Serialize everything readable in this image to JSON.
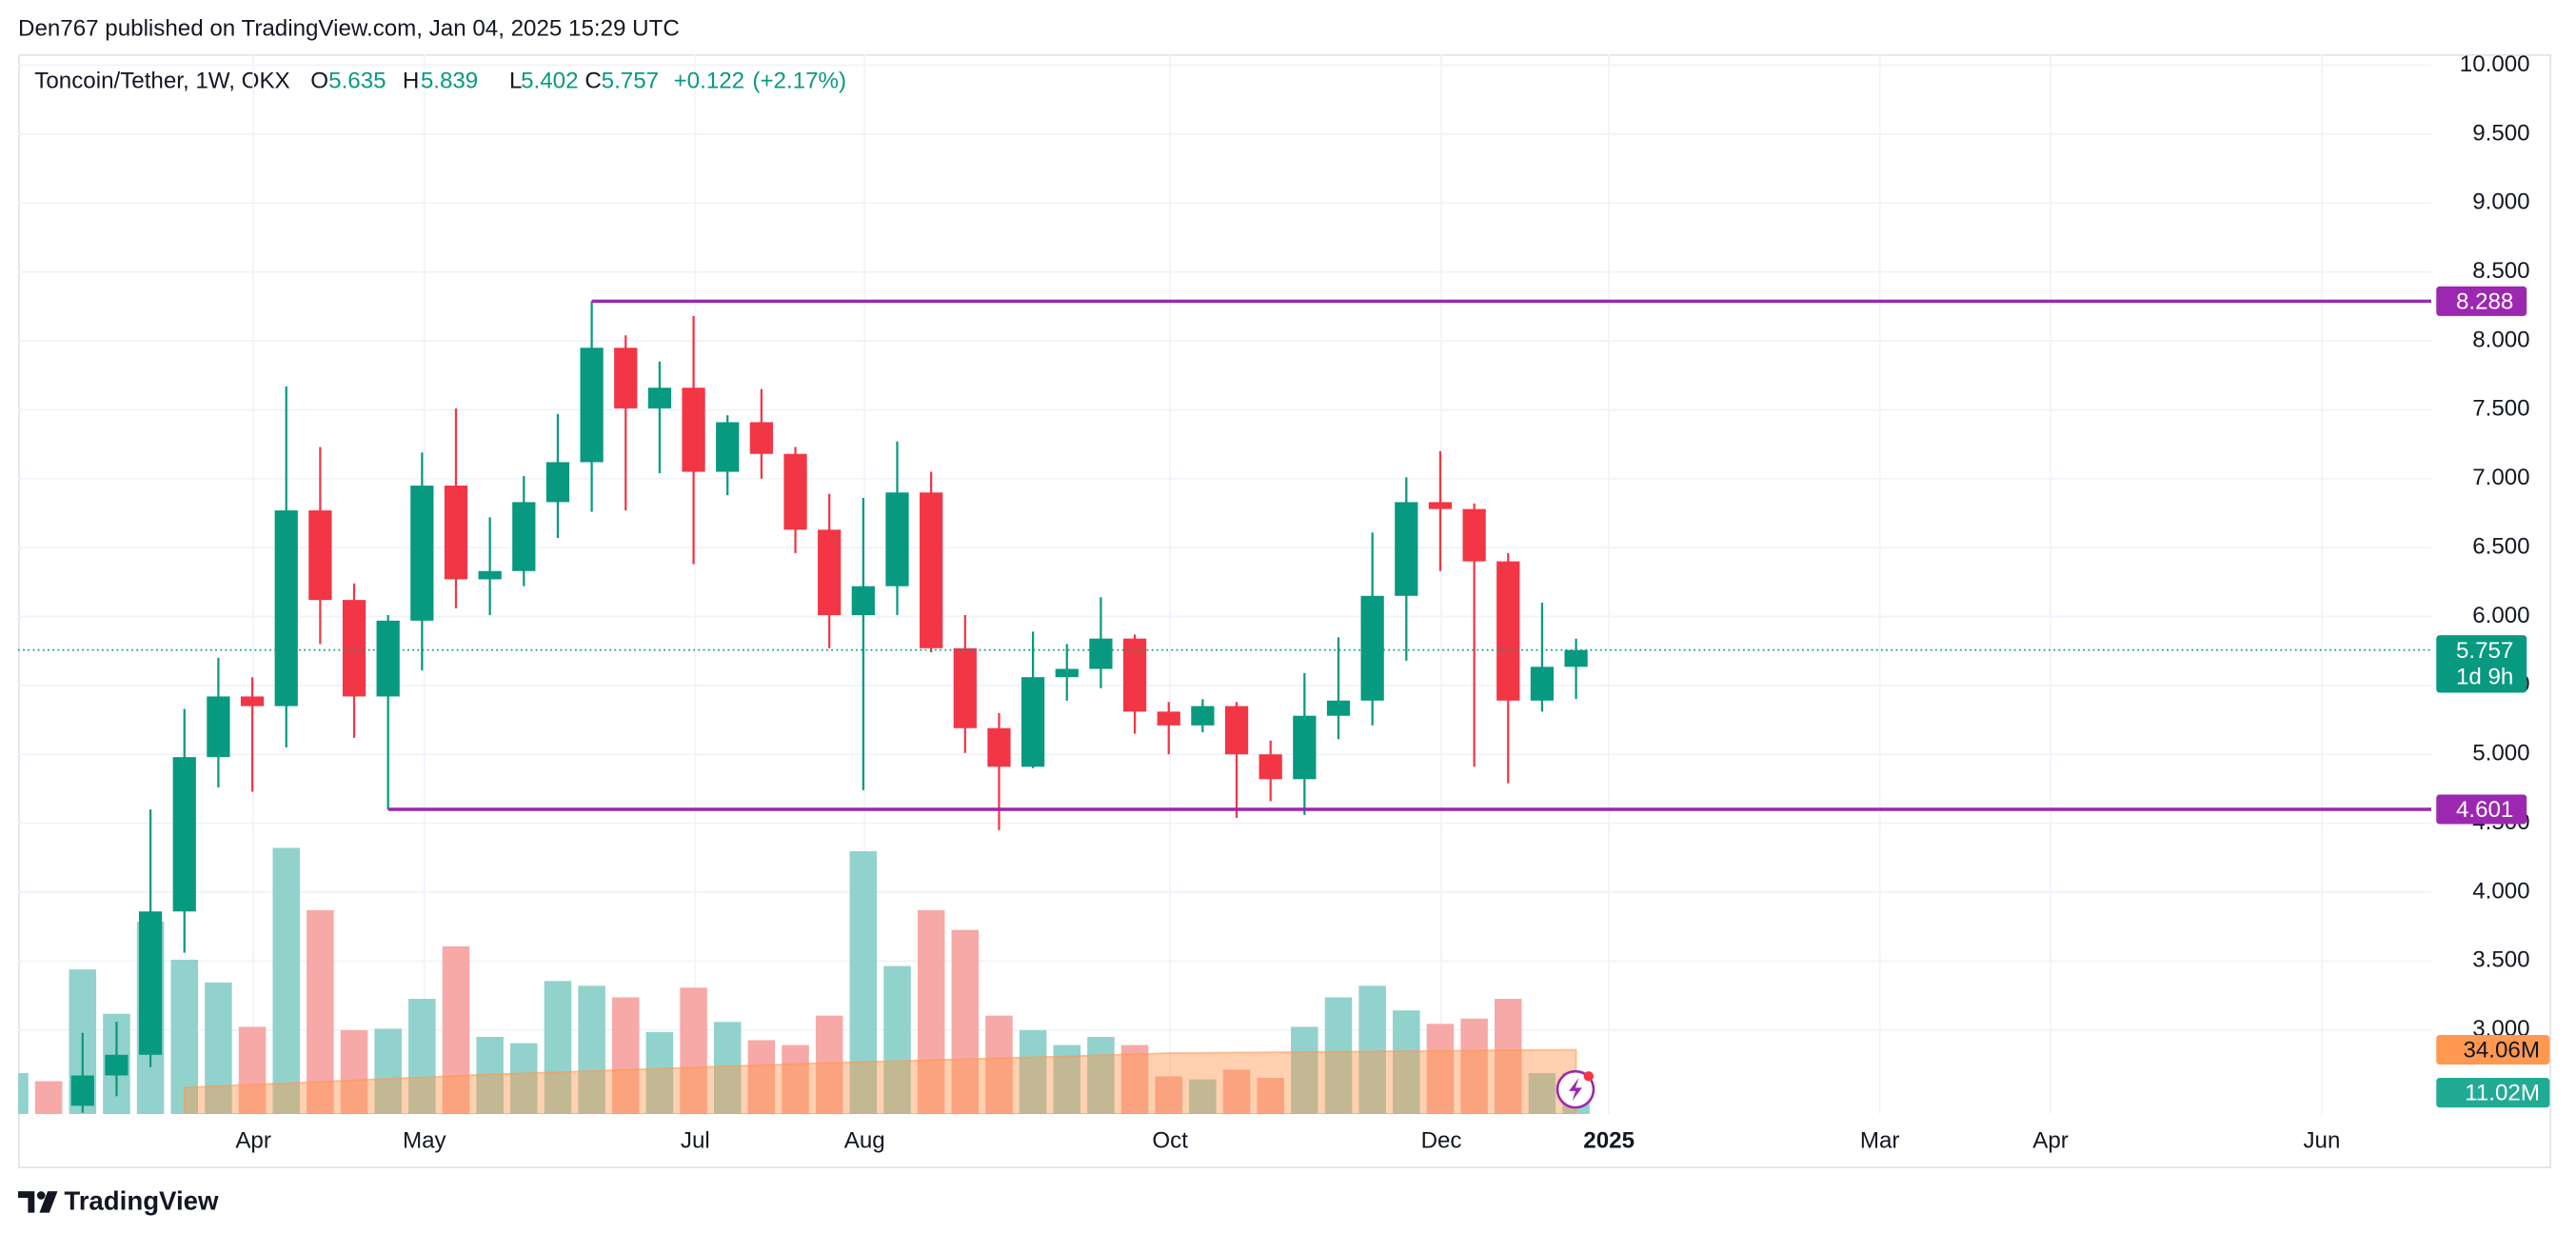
{
  "chart_data": {
    "type": "candlestick",
    "publisher": "Den767 published on TradingView.com, Jan 04, 2025 15:29 UTC",
    "title": "Toncoin/Tether, 1W, OKX",
    "brand": "TradingView",
    "ohlc_legend": [
      {
        "letter": "O",
        "value": 5.635
      },
      {
        "letter": "H",
        "value": 5.839
      },
      {
        "letter": "L",
        "value": 5.402
      },
      {
        "letter": "C",
        "value": 5.757
      }
    ],
    "change": {
      "value": 0.122,
      "label": "+0.122"
    },
    "change_pct": {
      "value": 2.17,
      "label": "(+2.17%)"
    },
    "up_color": "#089981",
    "down_color": "#f23645",
    "volume_up_color": "#92d2cc",
    "volume_down_color": "#f7a9a7",
    "ma_color": "#ff9850",
    "level_color": "#9c27b0",
    "open": [
      null,
      null,
      2.45,
      2.67,
      2.82,
      3.86,
      4.98,
      5.42,
      5.35,
      6.77,
      6.12,
      5.42,
      5.97,
      6.95,
      6.27,
      6.33,
      6.83,
      7.12,
      7.95,
      7.51,
      7.66,
      7.05,
      7.41,
      7.18,
      6.63,
      6.01,
      6.22,
      6.9,
      5.77,
      5.19,
      4.91,
      5.56,
      5.62,
      5.84,
      5.31,
      5.21,
      5.35,
      5.0,
      4.82,
      5.28,
      5.39,
      6.15,
      6.83,
      6.78,
      6.4,
      5.39,
      5.635
    ],
    "high": [
      null,
      null,
      2.98,
      3.06,
      4.6,
      5.33,
      5.7,
      5.56,
      7.67,
      7.23,
      6.24,
      6.01,
      7.19,
      7.51,
      6.72,
      7.02,
      7.47,
      8.288,
      8.04,
      7.85,
      8.18,
      7.46,
      7.65,
      7.23,
      6.89,
      6.86,
      7.27,
      7.05,
      6.01,
      5.3,
      5.89,
      5.8,
      6.14,
      5.87,
      5.38,
      5.4,
      5.38,
      5.1,
      5.59,
      5.85,
      6.61,
      7.01,
      7.2,
      6.82,
      6.46,
      6.1,
      5.839
    ],
    "low": [
      null,
      null,
      2.4,
      2.52,
      2.73,
      3.56,
      4.76,
      4.73,
      5.05,
      5.8,
      5.12,
      4.601,
      5.61,
      6.06,
      6.01,
      6.22,
      6.57,
      6.76,
      6.77,
      7.04,
      6.38,
      6.88,
      7.0,
      6.46,
      5.77,
      4.74,
      6.01,
      5.74,
      5.01,
      4.45,
      4.9,
      5.39,
      5.48,
      5.15,
      5.0,
      5.16,
      4.54,
      4.66,
      4.56,
      5.11,
      5.21,
      5.68,
      6.33,
      4.91,
      4.79,
      5.31,
      5.402
    ],
    "close": [
      null,
      null,
      2.67,
      2.82,
      3.86,
      4.98,
      5.42,
      5.35,
      6.77,
      6.12,
      5.42,
      5.97,
      6.95,
      6.27,
      6.33,
      6.83,
      7.12,
      7.95,
      7.51,
      7.66,
      7.05,
      7.41,
      7.18,
      6.63,
      6.01,
      6.22,
      6.9,
      5.77,
      5.19,
      4.91,
      5.56,
      5.62,
      5.84,
      5.31,
      5.21,
      5.35,
      5.0,
      4.82,
      5.28,
      5.39,
      6.15,
      6.83,
      6.78,
      6.4,
      5.39,
      5.635,
      5.757
    ],
    "volume": [
      11.0,
      8.8,
      38.8,
      26.9,
      51.6,
      41.4,
      35.3,
      23.4,
      71.4,
      54.7,
      22.5,
      22.9,
      30.9,
      45.0,
      20.7,
      19.0,
      35.7,
      34.4,
      31.3,
      22.0,
      33.9,
      24.7,
      19.8,
      18.5,
      26.4,
      70.5,
      39.7,
      54.7,
      49.4,
      26.4,
      22.5,
      18.5,
      20.7,
      18.5,
      10.1,
      9.3,
      11.9,
      9.7,
      23.4,
      31.3,
      34.4,
      27.8,
      24.2,
      25.6,
      30.9,
      11.0,
      11.02
    ],
    "volume_up": [
      true,
      false,
      true,
      true,
      true,
      true,
      true,
      false,
      true,
      false,
      false,
      true,
      true,
      false,
      true,
      true,
      true,
      true,
      false,
      true,
      false,
      true,
      false,
      false,
      false,
      true,
      true,
      false,
      false,
      false,
      true,
      true,
      true,
      false,
      false,
      true,
      false,
      false,
      true,
      true,
      true,
      true,
      false,
      false,
      false,
      true,
      true
    ],
    "volume_ma": [
      null,
      null,
      null,
      null,
      null,
      14.0,
      14.8,
      15.6,
      16.3,
      17.1,
      17.9,
      18.7,
      19.4,
      20.2,
      21.0,
      21.6,
      22.2,
      22.8,
      23.4,
      24.0,
      24.7,
      25.3,
      25.9,
      26.5,
      27.1,
      27.6,
      28.1,
      28.6,
      29.1,
      29.6,
      30.1,
      30.6,
      31.2,
      31.7,
      32.3,
      32.4,
      32.6,
      32.7,
      32.9,
      33.0,
      33.2,
      33.3,
      33.5,
      33.6,
      33.8,
      33.9,
      34.06
    ],
    "volume_ylim": [
      0,
      80
    ],
    "ma_ylim": [
      0,
      158
    ],
    "ma_label": {
      "value": 34.06,
      "label": "34.06M"
    },
    "volume_label": {
      "value": 11.02,
      "label": "11.02M"
    },
    "levels": [
      {
        "value": 8.288,
        "start": 17
      },
      {
        "value": 4.601,
        "start": 11
      }
    ],
    "last_price": {
      "value": 5.757,
      "countdown": "1d 9h"
    },
    "xlim": [
      0.1,
      71.2
    ],
    "xticks": [
      {
        "value": 7.03,
        "label": "Apr"
      },
      {
        "value": 12.07,
        "label": "May"
      },
      {
        "value": 20.05,
        "label": "Jul"
      },
      {
        "value": 25.04,
        "label": "Aug"
      },
      {
        "value": 34.04,
        "label": "Oct"
      },
      {
        "value": 42.03,
        "label": "Dec"
      },
      {
        "value": 46.97,
        "label": "2025"
      },
      {
        "value": 54.95,
        "label": "Mar"
      },
      {
        "value": 59.98,
        "label": "Apr"
      },
      {
        "value": 67.97,
        "label": "Jun"
      }
    ],
    "ylim": [
      2.39,
      10.08
    ],
    "yticks": [
      {
        "value": 10,
        "label": "10.000"
      },
      {
        "value": 9.5,
        "label": "9.500"
      },
      {
        "value": 9,
        "label": "9.000"
      },
      {
        "value": 8.5,
        "label": "8.500"
      },
      {
        "value": 8,
        "label": "8.000"
      },
      {
        "value": 7.5,
        "label": "7.500"
      },
      {
        "value": 7,
        "label": "7.000"
      },
      {
        "value": 6.5,
        "label": "6.500"
      },
      {
        "value": 6,
        "label": "6.000"
      },
      {
        "value": 5.5,
        "label": "5.500"
      },
      {
        "value": 5,
        "label": "5.000"
      },
      {
        "value": 4.5,
        "label": "4.500"
      },
      {
        "value": 4,
        "label": "4.000"
      },
      {
        "value": 3.5,
        "label": "3.500"
      },
      {
        "value": 3,
        "label": "3.000"
      }
    ],
    "grid": true
  }
}
